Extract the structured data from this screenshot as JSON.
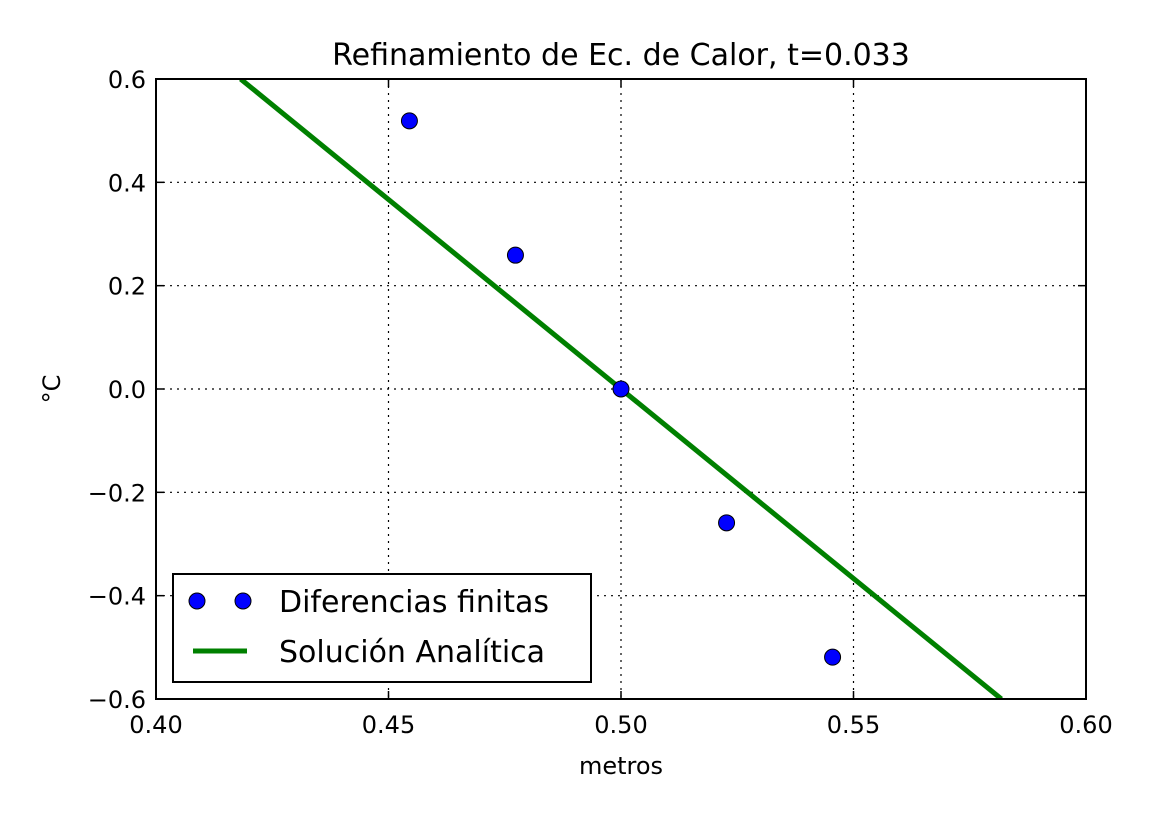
{
  "chart_data": {
    "type": "scatter",
    "title": "Refinamiento de Ec. de Calor, t=0.033",
    "xlabel": "metros",
    "ylabel": "°C",
    "xlim": [
      0.4,
      0.6
    ],
    "ylim": [
      -0.6,
      0.6
    ],
    "grid": true,
    "xticks": [
      0.4,
      0.45,
      0.5,
      0.55,
      0.6
    ],
    "xtick_labels": [
      "0.40",
      "0.45",
      "0.50",
      "0.55",
      "0.60"
    ],
    "yticks": [
      -0.6,
      -0.4,
      -0.2,
      0.0,
      0.2,
      0.4,
      0.6
    ],
    "ytick_labels": [
      "−0.6",
      "−0.4",
      "−0.2",
      "0.0",
      "0.2",
      "0.4",
      "0.6"
    ],
    "legend_position": "lower-left",
    "series": [
      {
        "name": "Diferencias finitas",
        "kind": "markers",
        "color": "#0000ff",
        "x": [
          0.4545,
          0.4773,
          0.5,
          0.5227,
          0.5455
        ],
        "y": [
          0.519,
          0.259,
          0.0,
          -0.259,
          -0.519
        ]
      },
      {
        "name": "Solución Analítica",
        "kind": "line",
        "color": "#008000",
        "x": [
          0.4182,
          0.5818
        ],
        "y": [
          0.6,
          -0.6
        ]
      }
    ]
  }
}
